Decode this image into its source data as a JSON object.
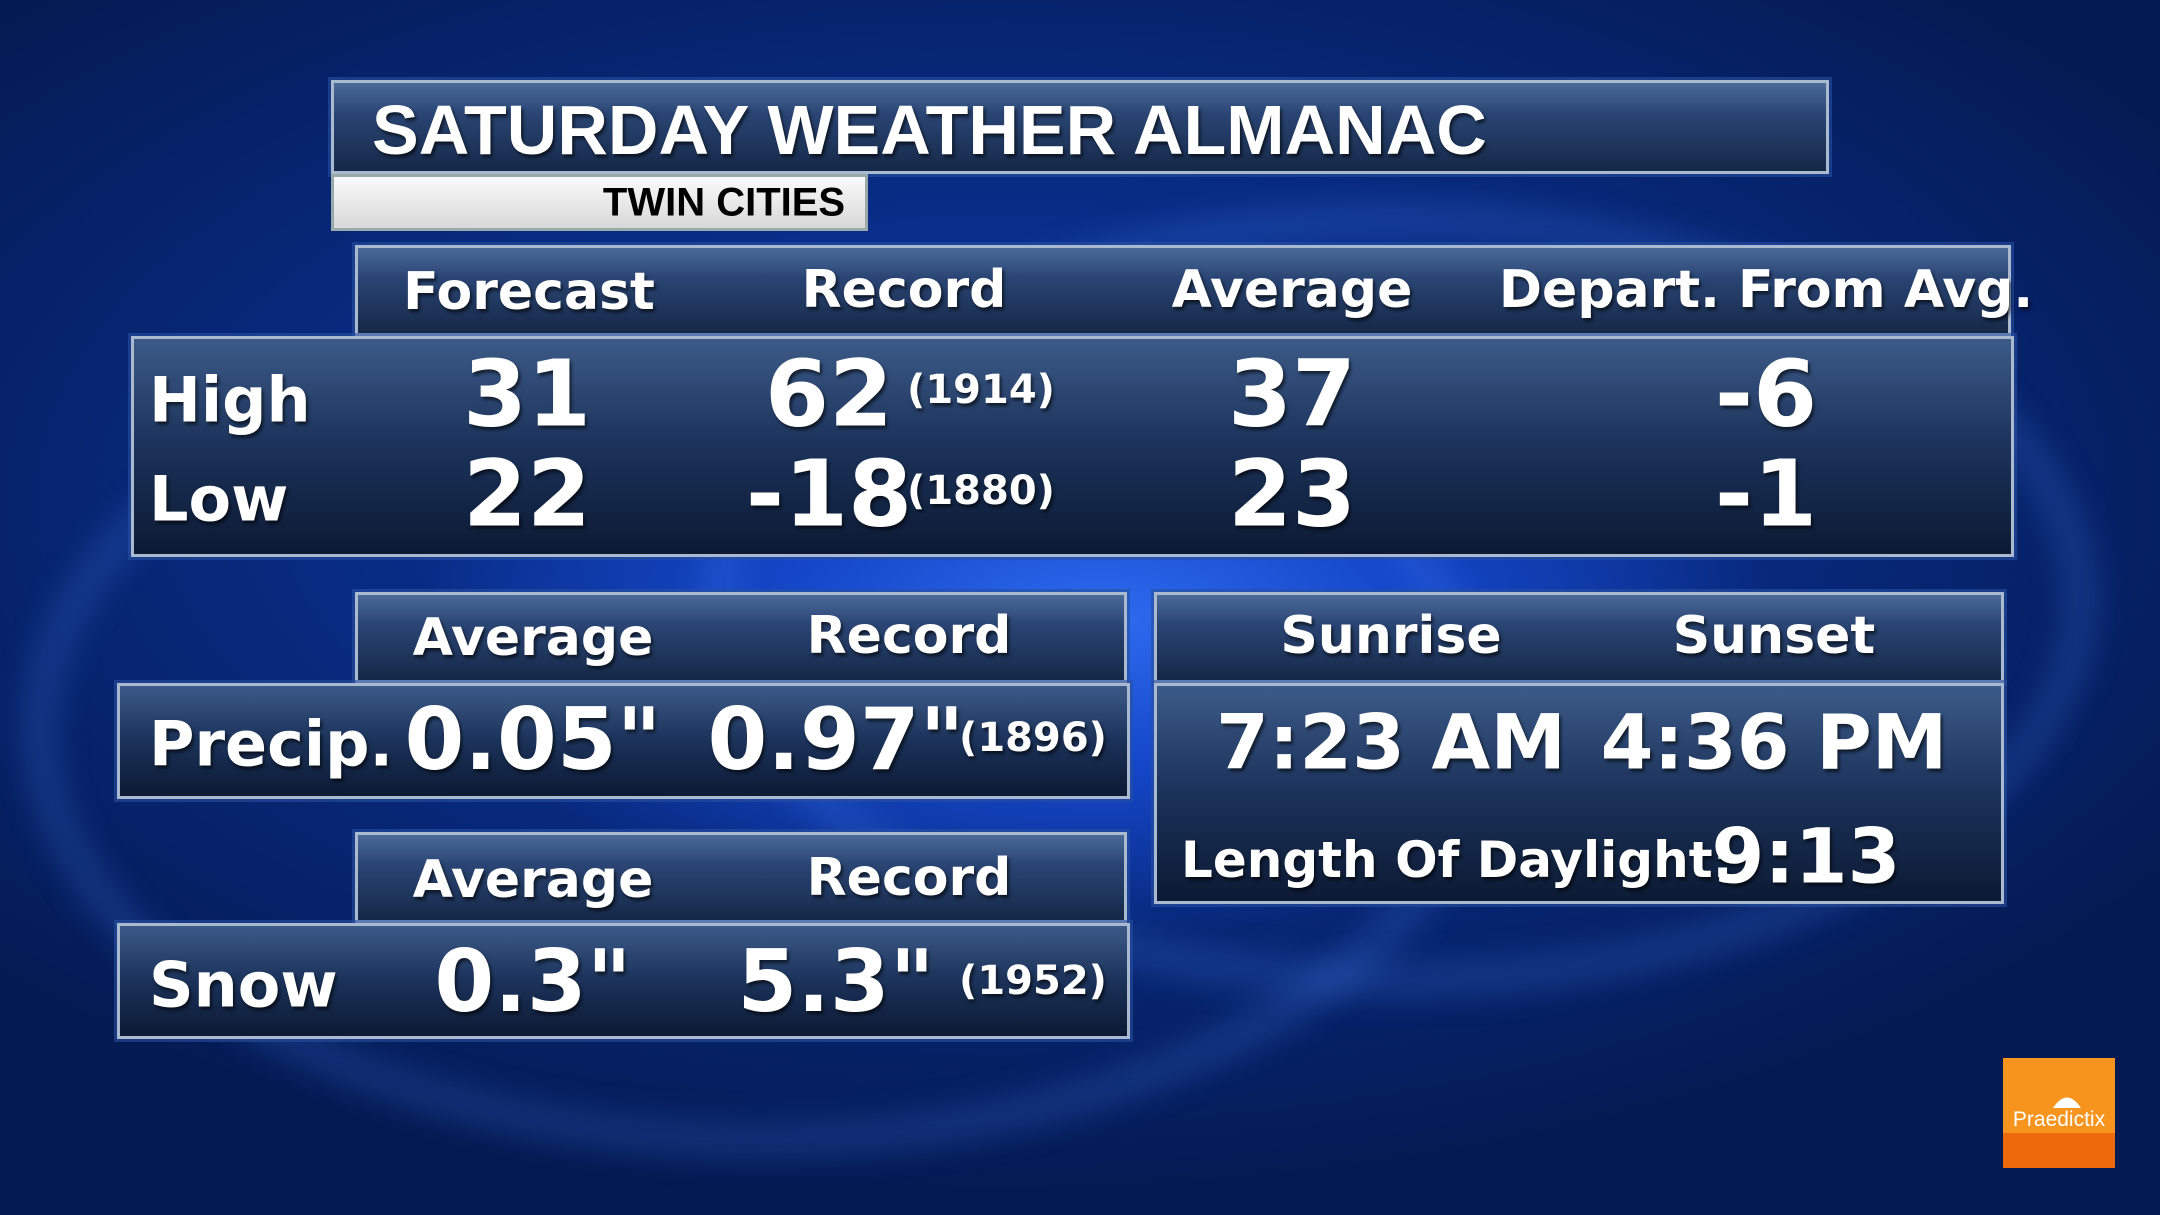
{
  "title": "SATURDAY WEATHER ALMANAC",
  "location": "TWIN CITIES",
  "temperature": {
    "columns": [
      "Forecast",
      "Record",
      "Average",
      "Depart. From Avg."
    ],
    "rows": [
      {
        "label": "High",
        "forecast": "31",
        "record": "62",
        "record_year": "(1914)",
        "average": "37",
        "departure": "-6"
      },
      {
        "label": "Low",
        "forecast": "22",
        "record": "-18",
        "record_year": "(1880)",
        "average": "23",
        "departure": "-1"
      }
    ]
  },
  "precip": {
    "columns": [
      "Average",
      "Record"
    ],
    "label": "Precip.",
    "average": "0.05\"",
    "record": "0.97\"",
    "record_year": "(1896)"
  },
  "snow": {
    "columns": [
      "Average",
      "Record"
    ],
    "label": "Snow",
    "average": "0.3\"",
    "record": "5.3\"",
    "record_year": "(1952)"
  },
  "sun": {
    "columns": [
      "Sunrise",
      "Sunset"
    ],
    "sunrise": "7:23 AM",
    "sunset": "4:36 PM",
    "daylight_label": "Length Of Daylight:",
    "daylight": "9:13"
  },
  "logo": {
    "text": "Praedictix",
    "color": "#f7941d",
    "icon": "umbrella-icon"
  }
}
